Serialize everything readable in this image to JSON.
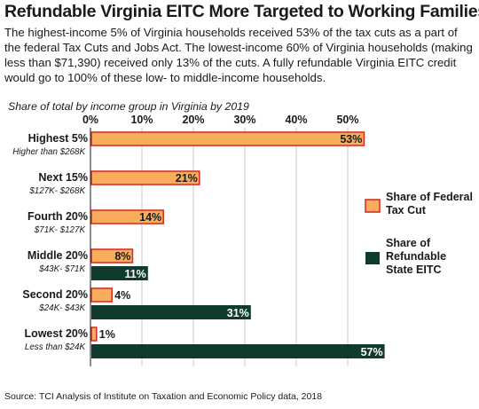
{
  "title": "Refundable Virginia EITC More Targeted to Working Families",
  "intro": "The highest-income 5% of Virginia households received 53% of the tax cuts as a part of the federal Tax Cuts and Jobs Act. The lowest-income 60% of Virginia households (making less than $71,390) received only 13% of the cuts. A fully refundable Virginia EITC credit would go to 100% of these low- to middle-income households.",
  "source": "Source: TCI Analysis of Institute on Taxation and Economic Policy data, 2018",
  "colors": {
    "federal_fill": "#f8ac5c",
    "federal_stroke": "#d9302c",
    "eitc_fill": "#0e3b2e",
    "grid": "#c8c8c8",
    "text": "#1a1a1a"
  },
  "chart_data": {
    "type": "bar",
    "orientation": "horizontal",
    "subtitle": "Share of total by income group in Virginia by 2019",
    "xlim": [
      0,
      58
    ],
    "ticks": [
      0,
      10,
      20,
      30,
      40,
      50
    ],
    "tick_labels": [
      "0%",
      "10%",
      "20%",
      "30%",
      "40%",
      "50%"
    ],
    "grid": true,
    "legend_position": "right",
    "categories": [
      {
        "label": "Highest 5%",
        "sublabel": "Higher than $268K"
      },
      {
        "label": "Next 15%",
        "sublabel": "$127K- $268K"
      },
      {
        "label": "Fourth 20%",
        "sublabel": "$71K- $127K"
      },
      {
        "label": "Middle 20%",
        "sublabel": "$43K- $71K"
      },
      {
        "label": "Second 20%",
        "sublabel": "$24K- $43K"
      },
      {
        "label": "Lowest 20%",
        "sublabel": "Less than $24K"
      }
    ],
    "series": [
      {
        "name": "Share of Federal Tax Cut",
        "values": [
          53,
          21,
          14,
          8,
          4,
          1
        ],
        "labels": [
          "53%",
          "21%",
          "14%",
          "8%",
          "4%",
          "1%"
        ]
      },
      {
        "name": "Share of Refundable State EITC",
        "values": [
          null,
          null,
          null,
          11,
          31,
          57
        ],
        "labels": [
          "",
          "",
          "",
          "11%",
          "31%",
          "57%"
        ]
      }
    ],
    "legend": [
      {
        "line1": "Share of Federal",
        "line2": "Tax Cut"
      },
      {
        "line1": "Share of",
        "line2": "Refundable",
        "line3": "State EITC"
      }
    ]
  }
}
